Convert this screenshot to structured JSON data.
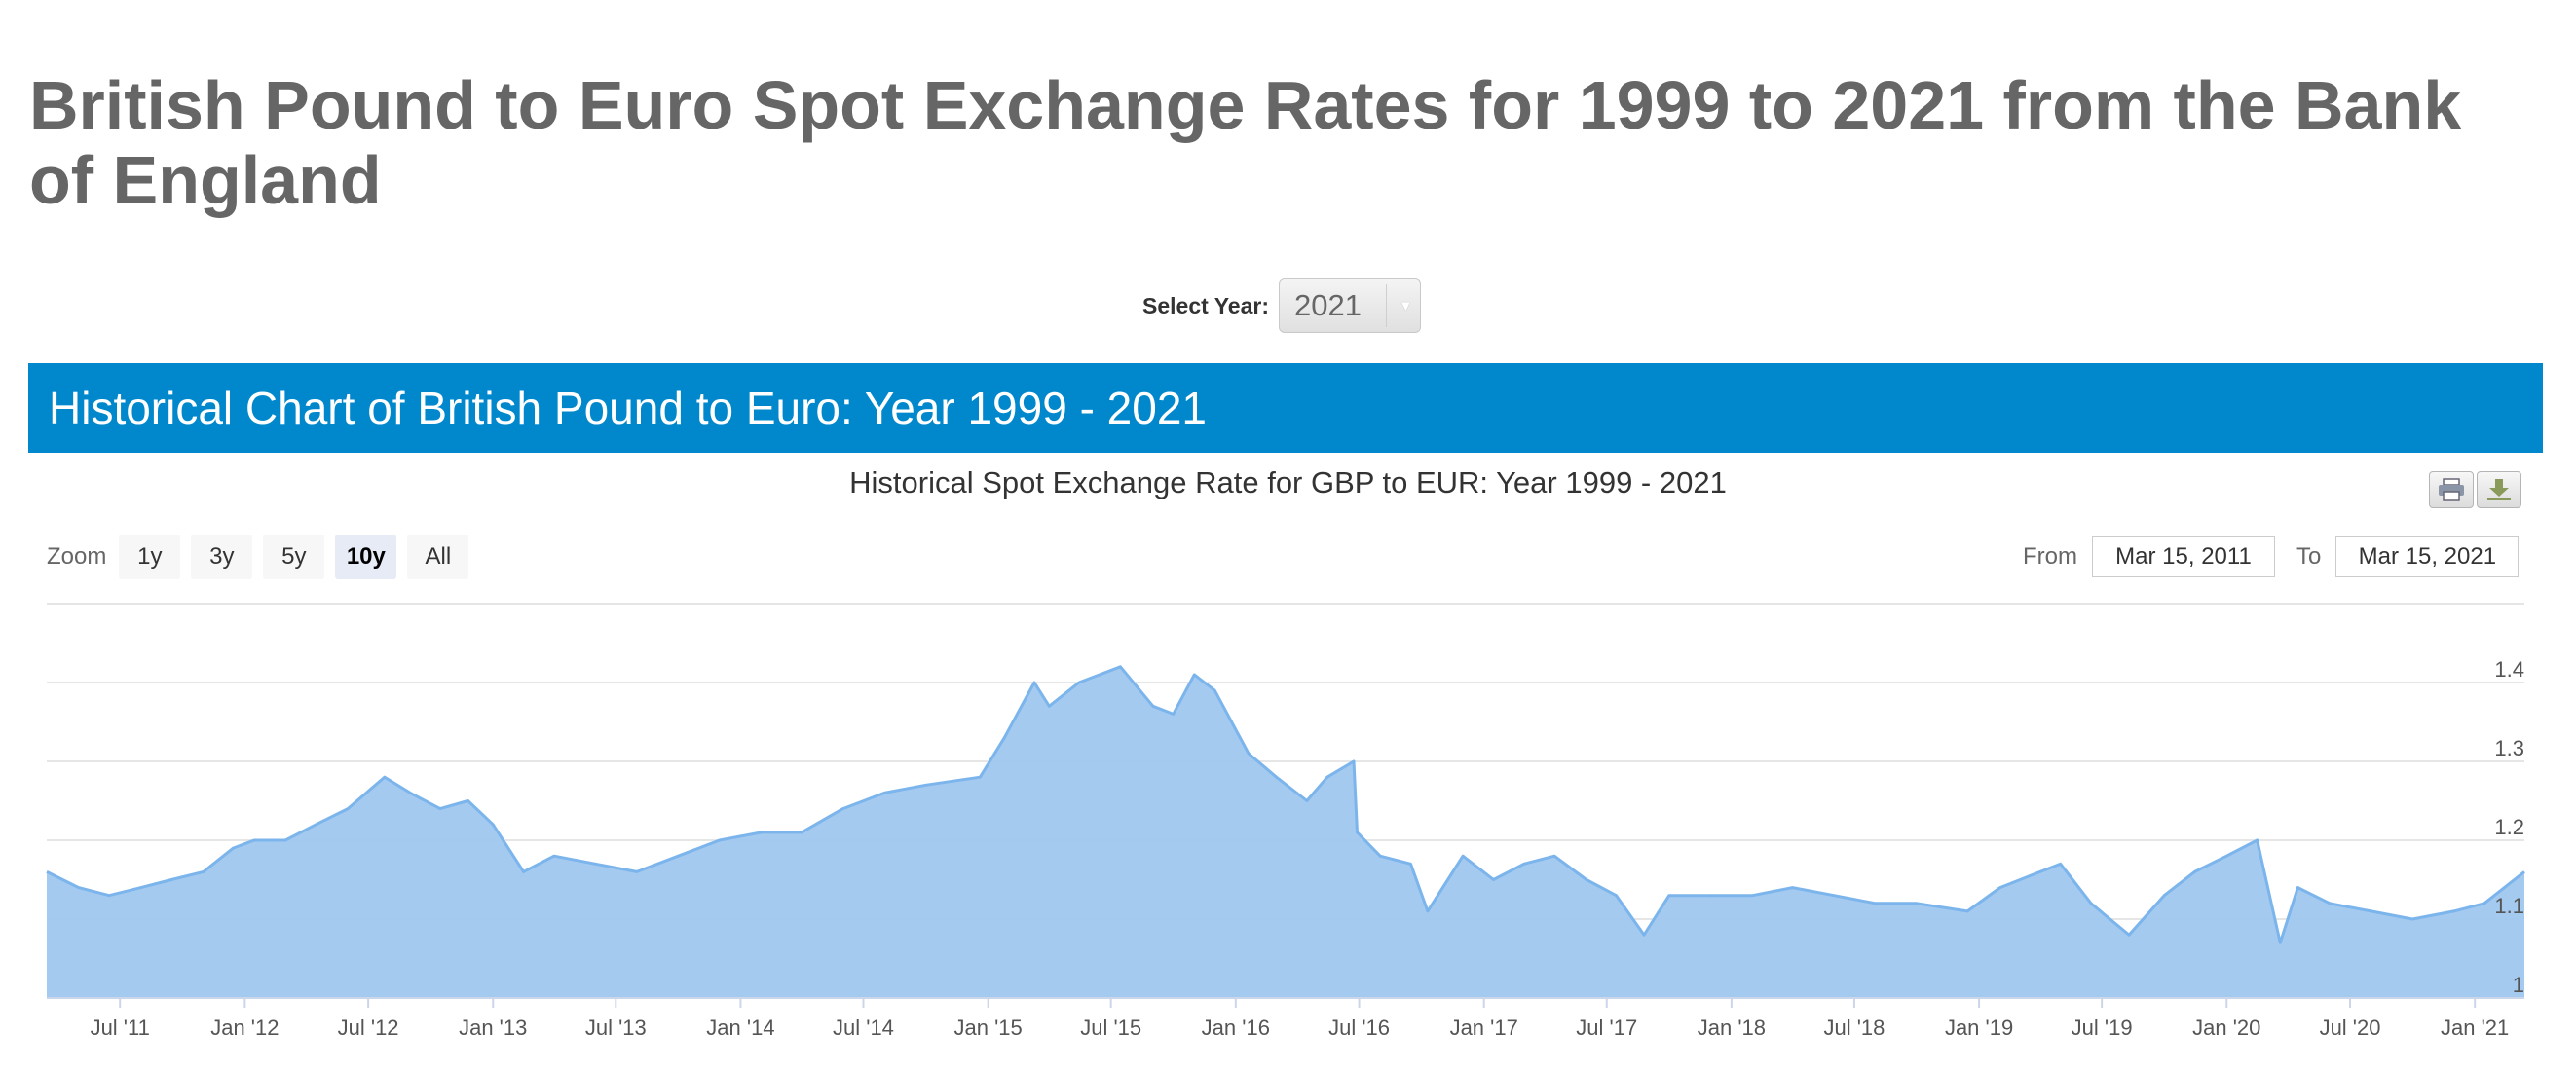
{
  "page": {
    "title": "British Pound to Euro Spot Exchange Rates for 1999 to 2021 from the Bank of England"
  },
  "year_select": {
    "label": "Select Year:",
    "value": "2021"
  },
  "banner": {
    "title": "Historical Chart of British Pound to Euro: Year 1999 - 2021"
  },
  "toolbar": {
    "zoom_label": "Zoom",
    "zoom_options": [
      "1y",
      "3y",
      "5y",
      "10y",
      "All"
    ],
    "active_zoom": "10y",
    "from_label": "From",
    "from_value": "Mar 15, 2011",
    "to_label": "To",
    "to_value": "Mar 15, 2021"
  },
  "colors": {
    "banner": "#0188cc",
    "area_fill": "#a0c7ef",
    "area_line": "#7cb5ec"
  },
  "icons": {
    "print": "print-icon",
    "download": "download-icon"
  },
  "chart_data": {
    "type": "area",
    "title": "Historical Spot Exchange Rate for GBP to EUR: Year 1999 - 2021",
    "series": [
      {
        "name": "GBP to EUR",
        "points": [
          [
            "2011-03-15",
            1.16
          ],
          [
            "2011-05-01",
            1.14
          ],
          [
            "2011-06-15",
            1.13
          ],
          [
            "2011-08-01",
            1.14
          ],
          [
            "2011-09-15",
            1.15
          ],
          [
            "2011-11-01",
            1.16
          ],
          [
            "2011-12-15",
            1.19
          ],
          [
            "2012-01-15",
            1.2
          ],
          [
            "2012-03-01",
            1.2
          ],
          [
            "2012-04-15",
            1.22
          ],
          [
            "2012-06-01",
            1.24
          ],
          [
            "2012-07-25",
            1.28
          ],
          [
            "2012-09-01",
            1.26
          ],
          [
            "2012-10-15",
            1.24
          ],
          [
            "2012-11-25",
            1.25
          ],
          [
            "2013-01-01",
            1.22
          ],
          [
            "2013-02-15",
            1.16
          ],
          [
            "2013-04-01",
            1.18
          ],
          [
            "2013-06-01",
            1.17
          ],
          [
            "2013-08-01",
            1.16
          ],
          [
            "2013-10-01",
            1.18
          ],
          [
            "2013-12-01",
            1.2
          ],
          [
            "2014-02-01",
            1.21
          ],
          [
            "2014-04-01",
            1.21
          ],
          [
            "2014-06-01",
            1.24
          ],
          [
            "2014-08-01",
            1.26
          ],
          [
            "2014-10-01",
            1.27
          ],
          [
            "2014-12-20",
            1.28
          ],
          [
            "2015-01-25",
            1.33
          ],
          [
            "2015-03-10",
            1.4
          ],
          [
            "2015-04-01",
            1.37
          ],
          [
            "2015-05-15",
            1.4
          ],
          [
            "2015-07-15",
            1.42
          ],
          [
            "2015-09-01",
            1.37
          ],
          [
            "2015-10-01",
            1.36
          ],
          [
            "2015-11-01",
            1.41
          ],
          [
            "2015-12-01",
            1.39
          ],
          [
            "2016-01-20",
            1.31
          ],
          [
            "2016-03-01",
            1.28
          ],
          [
            "2016-04-15",
            1.25
          ],
          [
            "2016-05-15",
            1.28
          ],
          [
            "2016-06-23",
            1.3
          ],
          [
            "2016-06-28",
            1.21
          ],
          [
            "2016-08-01",
            1.18
          ],
          [
            "2016-09-15",
            1.17
          ],
          [
            "2016-10-10",
            1.11
          ],
          [
            "2016-12-01",
            1.18
          ],
          [
            "2017-01-15",
            1.15
          ],
          [
            "2017-03-01",
            1.17
          ],
          [
            "2017-04-15",
            1.18
          ],
          [
            "2017-06-01",
            1.15
          ],
          [
            "2017-07-15",
            1.13
          ],
          [
            "2017-08-25",
            1.08
          ],
          [
            "2017-10-01",
            1.13
          ],
          [
            "2017-12-01",
            1.13
          ],
          [
            "2018-02-01",
            1.13
          ],
          [
            "2018-04-01",
            1.14
          ],
          [
            "2018-06-01",
            1.13
          ],
          [
            "2018-08-01",
            1.12
          ],
          [
            "2018-10-01",
            1.12
          ],
          [
            "2018-12-15",
            1.11
          ],
          [
            "2019-02-01",
            1.14
          ],
          [
            "2019-04-01",
            1.16
          ],
          [
            "2019-05-01",
            1.17
          ],
          [
            "2019-06-15",
            1.12
          ],
          [
            "2019-08-10",
            1.08
          ],
          [
            "2019-10-01",
            1.13
          ],
          [
            "2019-11-15",
            1.16
          ],
          [
            "2020-01-01",
            1.18
          ],
          [
            "2020-02-15",
            1.2
          ],
          [
            "2020-03-20",
            1.07
          ],
          [
            "2020-04-15",
            1.14
          ],
          [
            "2020-06-01",
            1.12
          ],
          [
            "2020-08-01",
            1.11
          ],
          [
            "2020-10-01",
            1.1
          ],
          [
            "2020-12-01",
            1.11
          ],
          [
            "2021-01-15",
            1.12
          ],
          [
            "2021-03-15",
            1.16
          ]
        ]
      }
    ],
    "xlabel": "",
    "ylabel": "",
    "y_ticks": [
      "1",
      "1.1",
      "1.2",
      "1.3",
      "1.4"
    ],
    "ylim": [
      1.0,
      1.5
    ],
    "xlim": [
      "2011-03-15",
      "2021-03-15"
    ],
    "x_ticks": [
      {
        "date": "2011-07-01",
        "label": "Jul '11"
      },
      {
        "date": "2012-01-01",
        "label": "Jan '12"
      },
      {
        "date": "2012-07-01",
        "label": "Jul '12"
      },
      {
        "date": "2013-01-01",
        "label": "Jan '13"
      },
      {
        "date": "2013-07-01",
        "label": "Jul '13"
      },
      {
        "date": "2014-01-01",
        "label": "Jan '14"
      },
      {
        "date": "2014-07-01",
        "label": "Jul '14"
      },
      {
        "date": "2015-01-01",
        "label": "Jan '15"
      },
      {
        "date": "2015-07-01",
        "label": "Jul '15"
      },
      {
        "date": "2016-01-01",
        "label": "Jan '16"
      },
      {
        "date": "2016-07-01",
        "label": "Jul '16"
      },
      {
        "date": "2017-01-01",
        "label": "Jan '17"
      },
      {
        "date": "2017-07-01",
        "label": "Jul '17"
      },
      {
        "date": "2018-01-01",
        "label": "Jan '18"
      },
      {
        "date": "2018-07-01",
        "label": "Jul '18"
      },
      {
        "date": "2019-01-01",
        "label": "Jan '19"
      },
      {
        "date": "2019-07-01",
        "label": "Jul '19"
      },
      {
        "date": "2020-01-01",
        "label": "Jan '20"
      },
      {
        "date": "2020-07-01",
        "label": "Jul '20"
      },
      {
        "date": "2021-01-01",
        "label": "Jan '21"
      }
    ],
    "grid": true,
    "legend": "none"
  }
}
